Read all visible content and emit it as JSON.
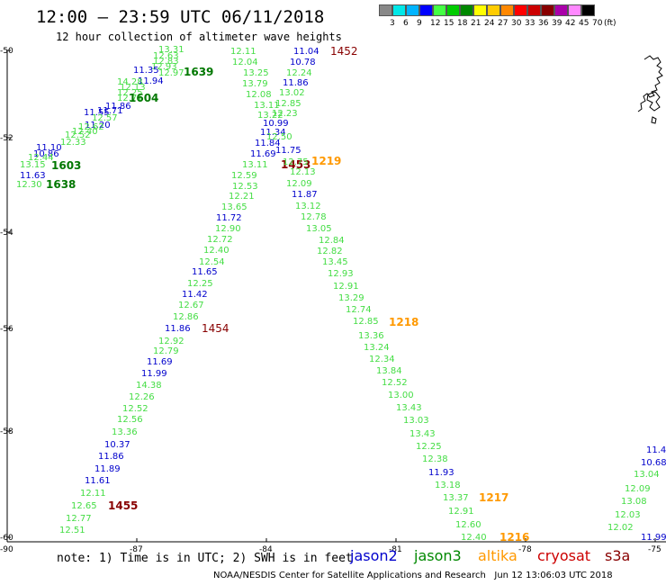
{
  "title": "12:00 – 23:59 UTC 06/11/2018",
  "subtitle": "12 hour collection of altimeter wave heights",
  "scale": {
    "colors": [
      "#888888",
      "#00e8e8",
      "#00b4ff",
      "#0000ff",
      "#44ff44",
      "#00cc00",
      "#008800",
      "#ffff00",
      "#ffcc00",
      "#ff8800",
      "#ff0000",
      "#cc0000",
      "#880000",
      "#aa00aa",
      "#ff88ff",
      "#000000"
    ],
    "labels": [
      "3",
      "6",
      "9",
      "12",
      "15",
      "18",
      "21",
      "24",
      "27",
      "30",
      "33",
      "36",
      "39",
      "42",
      "45",
      "70",
      "(ft)"
    ]
  },
  "axes": {
    "x_ticks": [
      "-90",
      "-87",
      "-84",
      "-81",
      "-78",
      "-75"
    ],
    "y_ticks": [
      "-50",
      "-52",
      "-54",
      "-56",
      "-58",
      "-60"
    ]
  },
  "colors": {
    "jason2": "#0000cc",
    "jason3": "#008800",
    "altika": "#ff9900",
    "cryosat": "#cc0000",
    "s3a": "#880000",
    "swh_light": "#44dd44",
    "swh_blue": "#0000cc",
    "swh_dark": "#007700"
  },
  "note": "note: 1) Time is in UTC; 2) SWH is in feet",
  "legend": [
    "jason2",
    "jason3",
    "altika",
    "cryosat",
    "s3a"
  ],
  "credit": "NOAA/NESDIS Center for Satellite Applications and Research   Jun 12 13:06:03 UTC 2018",
  "tracks": [
    {
      "time": "1638",
      "time_color": "dark",
      "values": [
        {
          "t": "13.31",
          "c": "light"
        },
        {
          "t": "12.63",
          "c": "light"
        },
        {
          "t": "12.83",
          "c": "light"
        },
        {
          "t": "12.93",
          "c": "light"
        },
        {
          "t": "11.35",
          "c": "blue"
        },
        {
          "t": "12.97",
          "c": "light"
        },
        {
          "t": "11.94",
          "c": "blue"
        },
        {
          "t": "14.28",
          "c": "light"
        },
        {
          "t": "12.13",
          "c": "light"
        },
        {
          "t": "12.25",
          "c": "light"
        },
        {
          "t": "12.71",
          "c": "light"
        },
        {
          "t": "11.86",
          "c": "blue"
        },
        {
          "t": "11.71",
          "c": "blue"
        },
        {
          "t": "11.55",
          "c": "blue"
        },
        {
          "t": "12.57",
          "c": "light"
        },
        {
          "t": "11.20",
          "c": "blue"
        },
        {
          "t": "12.62",
          "c": "light"
        },
        {
          "t": "12.40",
          "c": "light"
        },
        {
          "t": "12.52",
          "c": "light"
        },
        {
          "t": "12.33",
          "c": "light"
        },
        {
          "t": "11.10",
          "c": "blue"
        },
        {
          "t": "10.86",
          "c": "blue"
        },
        {
          "t": "12.44",
          "c": "light"
        },
        {
          "t": "13.15",
          "c": "light"
        },
        {
          "t": "11.63",
          "c": "blue"
        },
        {
          "t": "12.30",
          "c": "light"
        }
      ]
    },
    {
      "times": [
        "1639",
        "1604",
        "1603"
      ]
    },
    {
      "time": "1454",
      "values": [
        {
          "t": "12.11",
          "c": "light"
        },
        {
          "t": "12.04",
          "c": "light"
        },
        {
          "t": "13.25",
          "c": "light"
        },
        {
          "t": "13.79",
          "c": "light"
        },
        {
          "t": "12.08",
          "c": "light"
        },
        {
          "t": "13.11",
          "c": "light"
        },
        {
          "t": "13.22",
          "c": "light"
        },
        {
          "t": "11.34",
          "c": "blue"
        },
        {
          "t": "11.84",
          "c": "blue"
        },
        {
          "t": "11.69",
          "c": "blue"
        },
        {
          "t": "13.11",
          "c": "light"
        },
        {
          "t": "12.59",
          "c": "light"
        },
        {
          "t": "12.53",
          "c": "light"
        },
        {
          "t": "12.21",
          "c": "light"
        },
        {
          "t": "13.65",
          "c": "light"
        },
        {
          "t": "11.72",
          "c": "blue"
        },
        {
          "t": "12.90",
          "c": "light"
        },
        {
          "t": "12.72",
          "c": "light"
        },
        {
          "t": "12.40",
          "c": "light"
        },
        {
          "t": "12.54",
          "c": "light"
        },
        {
          "t": "11.65",
          "c": "blue"
        },
        {
          "t": "12.25",
          "c": "light"
        },
        {
          "t": "11.42",
          "c": "blue"
        },
        {
          "t": "12.67",
          "c": "light"
        },
        {
          "t": "12.86",
          "c": "light"
        },
        {
          "t": "11.86",
          "c": "blue"
        },
        {
          "t": "12.92",
          "c": "light"
        },
        {
          "t": "12.79",
          "c": "light"
        },
        {
          "t": "11.69",
          "c": "blue"
        },
        {
          "t": "11.99",
          "c": "blue"
        },
        {
          "t": "14.38",
          "c": "light"
        },
        {
          "t": "12.26",
          "c": "light"
        },
        {
          "t": "12.52",
          "c": "light"
        },
        {
          "t": "12.56",
          "c": "light"
        },
        {
          "t": "13.36",
          "c": "light"
        },
        {
          "t": "10.37",
          "c": "blue"
        },
        {
          "t": "11.86",
          "c": "blue"
        },
        {
          "t": "11.89",
          "c": "blue"
        },
        {
          "t": "11.61",
          "c": "blue"
        },
        {
          "t": "12.11",
          "c": "light"
        },
        {
          "t": "12.65",
          "c": "light"
        },
        {
          "t": "12.77",
          "c": "light"
        },
        {
          "t": "12.51",
          "c": "light"
        }
      ],
      "other_times": [
        "1453",
        "1455"
      ]
    },
    {
      "time": "1452",
      "values": [
        {
          "t": "11.04",
          "c": "blue"
        },
        {
          "t": "10.78",
          "c": "blue"
        },
        {
          "t": "12.24",
          "c": "light"
        },
        {
          "t": "11.86",
          "c": "blue"
        },
        {
          "t": "13.02",
          "c": "light"
        },
        {
          "t": "12.85",
          "c": "light"
        },
        {
          "t": "12.23",
          "c": "light"
        },
        {
          "t": "10.99",
          "c": "blue"
        },
        {
          "t": "12.50",
          "c": "light"
        },
        {
          "t": "11.75",
          "c": "blue"
        }
      ]
    },
    {
      "time": "1219",
      "values": [
        {
          "t": "12.75",
          "c": "light"
        },
        {
          "t": "12.13",
          "c": "light"
        },
        {
          "t": "12.09",
          "c": "light"
        },
        {
          "t": "11.87",
          "c": "blue"
        },
        {
          "t": "13.12",
          "c": "light"
        },
        {
          "t": "12.78",
          "c": "light"
        },
        {
          "t": "13.05",
          "c": "light"
        },
        {
          "t": "12.84",
          "c": "light"
        },
        {
          "t": "12.82",
          "c": "light"
        },
        {
          "t": "13.45",
          "c": "light"
        },
        {
          "t": "12.93",
          "c": "light"
        },
        {
          "t": "12.91",
          "c": "light"
        },
        {
          "t": "13.29",
          "c": "light"
        },
        {
          "t": "12.74",
          "c": "light"
        },
        {
          "t": "12.85",
          "c": "light"
        }
      ],
      "other_times": [
        "1218",
        "1217",
        "1216"
      ]
    },
    {
      "values2": [
        {
          "t": "13.36",
          "c": "light"
        },
        {
          "t": "13.24",
          "c": "light"
        },
        {
          "t": "12.34",
          "c": "light"
        },
        {
          "t": "13.84",
          "c": "light"
        },
        {
          "t": "12.52",
          "c": "light"
        },
        {
          "t": "13.00",
          "c": "light"
        },
        {
          "t": "13.43",
          "c": "light"
        },
        {
          "t": "13.03",
          "c": "light"
        },
        {
          "t": "13.43",
          "c": "light"
        },
        {
          "t": "12.25",
          "c": "light"
        },
        {
          "t": "12.38",
          "c": "light"
        },
        {
          "t": "11.93",
          "c": "blue"
        },
        {
          "t": "13.18",
          "c": "light"
        },
        {
          "t": "13.37",
          "c": "light"
        },
        {
          "t": "12.91",
          "c": "light"
        },
        {
          "t": "12.60",
          "c": "light"
        },
        {
          "t": "12.40",
          "c": "light"
        }
      ]
    },
    {
      "values3": [
        {
          "t": "11.4",
          "c": "blue"
        },
        {
          "t": "10.68",
          "c": "blue"
        },
        {
          "t": "13.04",
          "c": "light"
        },
        {
          "t": "12.09",
          "c": "light"
        },
        {
          "t": "13.08",
          "c": "light"
        },
        {
          "t": "12.03",
          "c": "light"
        },
        {
          "t": "12.02",
          "c": "light"
        },
        {
          "t": "11.99",
          "c": "blue"
        }
      ]
    }
  ]
}
